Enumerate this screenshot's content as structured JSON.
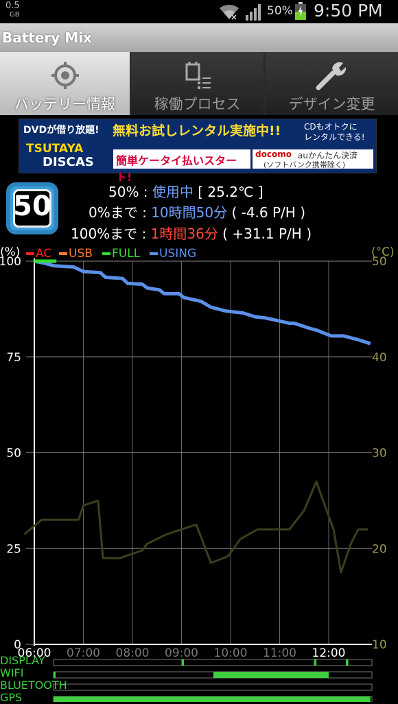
{
  "status_bar": {
    "storage_value": "0.5",
    "storage_unit": "GB",
    "battery_percent": "50%",
    "time": "9:50 PM",
    "icons": [
      "wifi-icon",
      "signal-icon",
      "battery-charging-icon"
    ]
  },
  "app": {
    "title": "Battery Mix"
  },
  "tabs": [
    {
      "label": "バッテリー情報",
      "icon": "target-icon",
      "active": true
    },
    {
      "label": "稼働プロセス",
      "icon": "process-list-icon",
      "active": false
    },
    {
      "label": "デザイン変更",
      "icon": "wrench-icon",
      "active": false
    }
  ],
  "ad": {
    "line1": "DVDが借り放題!",
    "headline": "無料お試しレンタル実施中!!",
    "cd_line1": "CDもオトクに",
    "cd_line2": "レンタルできる!",
    "brand_line1": "TSUTAYA",
    "brand_line2": "DISCAS",
    "mid": "簡単ケータイ払いスタート!",
    "docomo": "docomo",
    "au": "auかんたん決済",
    "softbank": "(ソフトバンク携帯除く)"
  },
  "battery": {
    "level": "50",
    "row1_pct": "50%",
    "row1_sep": " : ",
    "row1_status": "使用中",
    "row1_temp": " [ 25.2℃ ]",
    "row2_prefix": "0%まで",
    "row2_sep": " : ",
    "row2_time": "10時間50分",
    "row2_rate": " ( -4.6 P/H )",
    "row3_prefix": "100%まで",
    "row3_sep": " : ",
    "row3_time": "1時間36分",
    "row3_rate": " ( +31.1 P/H )"
  },
  "legend": [
    {
      "label": "AC",
      "color": "#ff2020"
    },
    {
      "label": "USB",
      "color": "#ff7a2a"
    },
    {
      "label": "FULL",
      "color": "#33dd33"
    },
    {
      "label": "USING",
      "color": "#5b8fe8"
    }
  ],
  "axis": {
    "left_unit": "(%)",
    "right_unit": "(°C)"
  },
  "chart_data": {
    "type": "line",
    "x_ticks": [
      "06:00",
      "07:00",
      "08:00",
      "09:00",
      "10:00",
      "11:00",
      "12:00"
    ],
    "y_left_ticks": [
      "100",
      "75",
      "50",
      "25",
      "0"
    ],
    "y_right_ticks": [
      "50",
      "40",
      "30",
      "20",
      "10"
    ],
    "ylim_left": [
      0,
      100
    ],
    "ylim_right": [
      10,
      50
    ],
    "grid": true,
    "series": [
      {
        "name": "USING",
        "axis": "left",
        "color": "#5b8fe8",
        "x": [
          6.0,
          6.2,
          6.4,
          6.8,
          7.0,
          7.35,
          7.45,
          7.8,
          7.9,
          8.2,
          8.3,
          8.55,
          8.65,
          8.95,
          9.05,
          9.4,
          9.6,
          9.9,
          10.25,
          10.5,
          10.7,
          10.95,
          11.2,
          11.3,
          11.6,
          11.75,
          12.05,
          12.3,
          12.6,
          12.85
        ],
        "y": [
          100,
          99.5,
          98.8,
          98.5,
          97.3,
          97,
          95.8,
          95.5,
          94.2,
          94,
          93,
          92.5,
          91.5,
          91.5,
          90.5,
          89.5,
          88,
          87,
          86.5,
          85.5,
          85.2,
          84.5,
          83.8,
          83.8,
          82.5,
          82,
          80.5,
          80.5,
          79.5,
          78.5
        ]
      },
      {
        "name": "FULL",
        "axis": "left",
        "color": "#33dd33",
        "x": [
          6.0,
          6.45
        ],
        "y": [
          100,
          100
        ]
      },
      {
        "name": "Temperature",
        "axis": "right",
        "color": "#3e3e1e",
        "x": [
          5.8,
          6.15,
          6.6,
          6.9,
          7.0,
          7.3,
          7.4,
          7.75,
          7.85,
          8.2,
          8.3,
          8.7,
          9.3,
          9.6,
          9.95,
          10.2,
          10.55,
          10.9,
          11.2,
          11.5,
          11.75,
          11.85,
          12.1,
          12.25,
          12.45,
          12.6,
          12.8
        ],
        "y": [
          21.5,
          23,
          23,
          23,
          24.5,
          25,
          19,
          19,
          19.2,
          19.8,
          20.5,
          21.5,
          22.5,
          18.5,
          19.2,
          21,
          22,
          22,
          22,
          24,
          27,
          25.5,
          22,
          17.5,
          20.5,
          22,
          22
        ]
      }
    ]
  },
  "activity": [
    {
      "label": "DISPLAY",
      "segments": [
        [
          9.0,
          9.05
        ],
        [
          11.7,
          11.75
        ],
        [
          12.35,
          12.4
        ]
      ]
    },
    {
      "label": "WIFI",
      "segments": [
        [
          6.0,
          6.35
        ],
        [
          9.65,
          12.0
        ]
      ]
    },
    {
      "label": "BLUETOOTH",
      "segments": []
    },
    {
      "label": "GPS",
      "segments": [
        [
          6.0,
          12.85
        ]
      ]
    }
  ]
}
